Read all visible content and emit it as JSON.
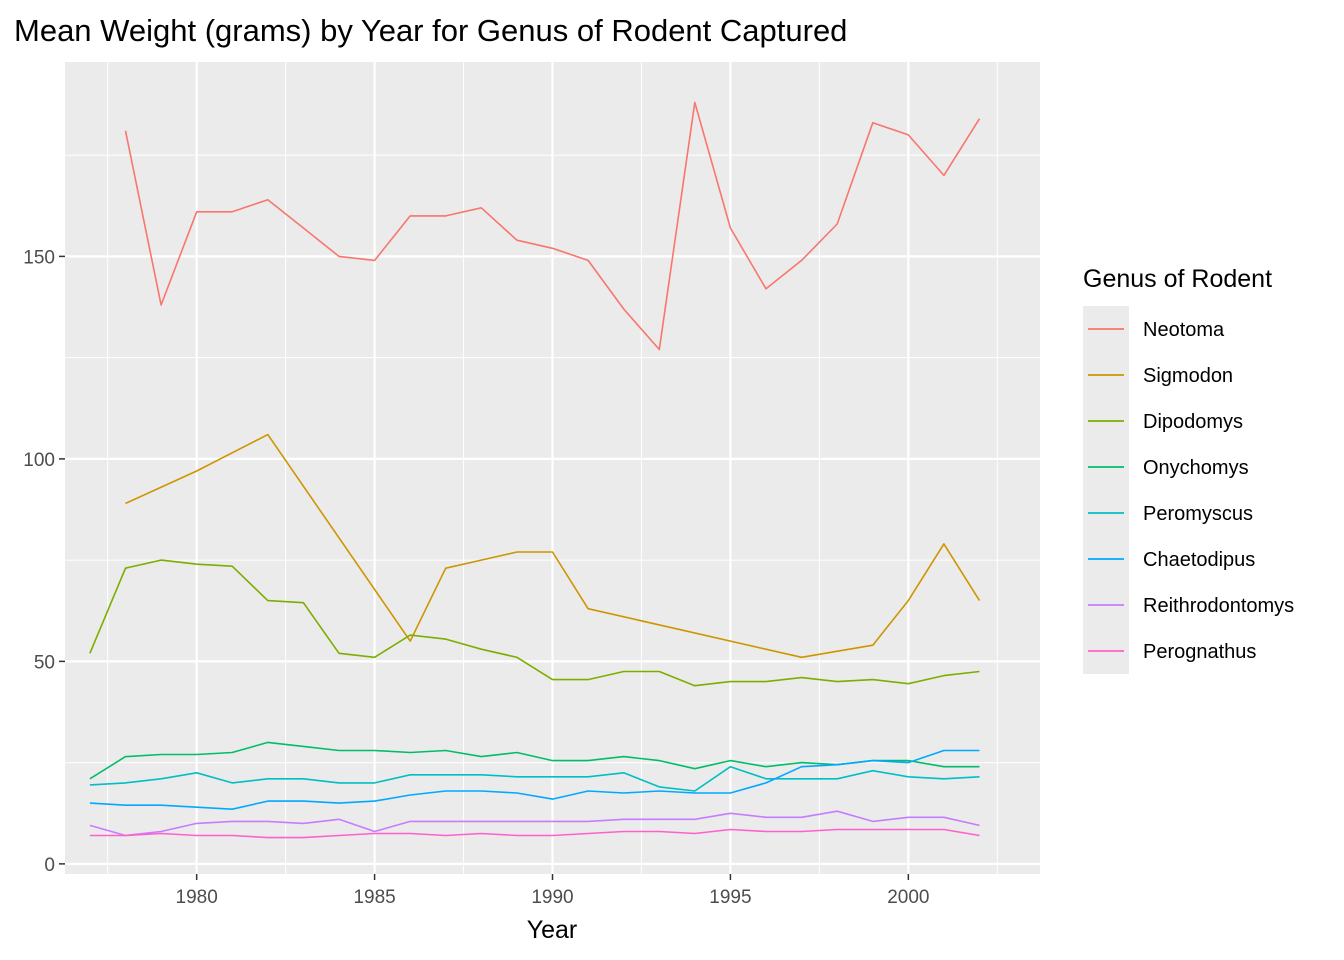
{
  "chart_data": {
    "type": "line",
    "title": "Mean Weight (grams) by Year for Genus of Rodent Captured",
    "xlabel": "Year",
    "ylabel": "",
    "xlim": [
      1976.3,
      2003.7
    ],
    "ylim": [
      -2.5,
      198
    ],
    "x_ticks": [
      1980,
      1985,
      1990,
      1995,
      2000
    ],
    "y_ticks": [
      0,
      50,
      100,
      150
    ],
    "grid": true,
    "legend": {
      "title": "Genus of Rodent",
      "position": "right"
    },
    "series": [
      {
        "name": "Neotoma",
        "color": "#F8766D",
        "x": [
          1978,
          1979,
          1980,
          1981,
          1982,
          1983,
          1984,
          1985,
          1986,
          1987,
          1988,
          1989,
          1990,
          1991,
          1992,
          1993,
          1994,
          1995,
          1996,
          1997,
          1998,
          1999,
          2000,
          2001,
          2002
        ],
        "y": [
          181,
          138,
          161,
          161,
          164,
          157,
          150,
          149,
          160,
          160,
          162,
          154,
          152,
          149,
          137,
          127,
          188,
          157,
          142,
          149,
          158,
          183,
          180,
          170,
          184
        ]
      },
      {
        "name": "Sigmodon",
        "color": "#CD9600",
        "x": [
          1978,
          1980,
          1982,
          1986,
          1987,
          1988,
          1989,
          1990,
          1991,
          1997,
          1999,
          2000,
          2001,
          2002
        ],
        "y": [
          89,
          97,
          106,
          55,
          73,
          75,
          77,
          77,
          63,
          51,
          54,
          65,
          79,
          65
        ]
      },
      {
        "name": "Dipodomys",
        "color": "#7CAE00",
        "x": [
          1977,
          1978,
          1979,
          1980,
          1981,
          1982,
          1983,
          1984,
          1985,
          1986,
          1987,
          1988,
          1989,
          1990,
          1991,
          1992,
          1993,
          1994,
          1995,
          1996,
          1997,
          1998,
          1999,
          2000,
          2001,
          2002
        ],
        "y": [
          52,
          73,
          75,
          74,
          73.5,
          65,
          64.5,
          52,
          51,
          56.5,
          55.5,
          53,
          51,
          45.5,
          45.5,
          47.5,
          47.5,
          44,
          45,
          45,
          46,
          45,
          45.5,
          44.5,
          46.5,
          47.5
        ]
      },
      {
        "name": "Onychomys",
        "color": "#00BE67",
        "x": [
          1977,
          1978,
          1979,
          1980,
          1981,
          1982,
          1983,
          1984,
          1985,
          1986,
          1987,
          1988,
          1989,
          1990,
          1991,
          1992,
          1993,
          1994,
          1995,
          1996,
          1997,
          1998,
          1999,
          2000,
          2001,
          2002
        ],
        "y": [
          21,
          26.5,
          27,
          27,
          27.5,
          30,
          29,
          28,
          28,
          27.5,
          28,
          26.5,
          27.5,
          25.5,
          25.5,
          26.5,
          25.5,
          23.5,
          25.5,
          24,
          25,
          24.5,
          25.5,
          25.5,
          24,
          24
        ]
      },
      {
        "name": "Peromyscus",
        "color": "#00BFC4",
        "x": [
          1977,
          1978,
          1979,
          1980,
          1981,
          1982,
          1983,
          1984,
          1985,
          1986,
          1987,
          1988,
          1989,
          1990,
          1991,
          1992,
          1993,
          1994,
          1995,
          1996,
          1997,
          1998,
          1999,
          2000,
          2001,
          2002
        ],
        "y": [
          19.5,
          20,
          21,
          22.5,
          20,
          21,
          21,
          20,
          20,
          22,
          22,
          22,
          21.5,
          21.5,
          21.5,
          22.5,
          19,
          18,
          24,
          21,
          21,
          21,
          23,
          21.5,
          21,
          21.5
        ]
      },
      {
        "name": "Chaetodipus",
        "color": "#00A9FF",
        "x": [
          1977,
          1978,
          1979,
          1980,
          1981,
          1982,
          1983,
          1984,
          1985,
          1986,
          1987,
          1988,
          1989,
          1990,
          1991,
          1992,
          1993,
          1994,
          1995,
          1996,
          1997,
          1998,
          1999,
          2000,
          2001,
          2002
        ],
        "y": [
          15,
          14.5,
          14.5,
          14,
          13.5,
          15.5,
          15.5,
          15,
          15.5,
          17,
          18,
          18,
          17.5,
          16,
          18,
          17.5,
          18,
          17.5,
          17.5,
          20,
          24,
          24.5,
          25.5,
          25,
          28,
          28
        ]
      },
      {
        "name": "Reithrodontomys",
        "color": "#C77CFF",
        "x": [
          1977,
          1978,
          1979,
          1980,
          1981,
          1982,
          1983,
          1984,
          1985,
          1986,
          1987,
          1988,
          1989,
          1990,
          1991,
          1992,
          1993,
          1994,
          1995,
          1996,
          1997,
          1998,
          1999,
          2000,
          2001,
          2002
        ],
        "y": [
          9.5,
          7,
          8,
          10,
          10.5,
          10.5,
          10,
          11,
          8,
          10.5,
          10.5,
          10.5,
          10.5,
          10.5,
          10.5,
          11,
          11,
          11,
          12.5,
          11.5,
          11.5,
          13,
          10.5,
          11.5,
          11.5,
          9.5
        ]
      },
      {
        "name": "Perognathus",
        "color": "#FF61CC",
        "x": [
          1977,
          1978,
          1979,
          1980,
          1981,
          1982,
          1983,
          1984,
          1985,
          1986,
          1987,
          1988,
          1989,
          1990,
          1991,
          1992,
          1993,
          1994,
          1995,
          1996,
          1997,
          1998,
          1999,
          2000,
          2001,
          2002
        ],
        "y": [
          7,
          7,
          7.5,
          7,
          7,
          6.5,
          6.5,
          7,
          7.5,
          7.5,
          7,
          7.5,
          7,
          7,
          7.5,
          8,
          8,
          7.5,
          8.5,
          8,
          8,
          8.5,
          8.5,
          8.5,
          8.5,
          7
        ]
      }
    ]
  }
}
